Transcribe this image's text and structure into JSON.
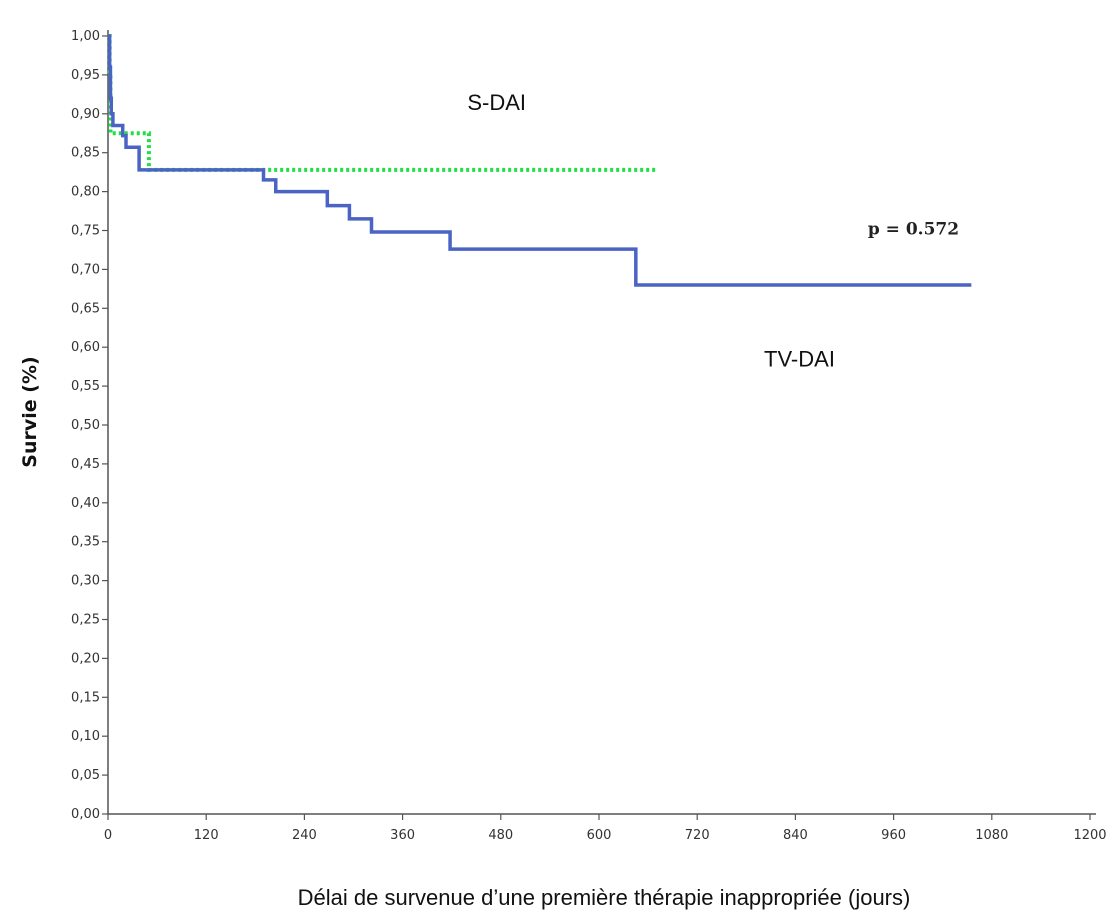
{
  "chart_data": {
    "type": "line",
    "xlabel": "Délai de survenue d’une première thérapie inappropriée (jours)",
    "ylabel": "Survie (%)",
    "xlim": [
      0,
      1200
    ],
    "ylim": [
      0,
      1.0
    ],
    "x_ticks": [
      "0",
      "120",
      "240",
      "360",
      "480",
      "600",
      "720",
      "840",
      "960",
      "1080",
      "1200"
    ],
    "y_ticks": [
      "0,00",
      "0,05",
      "0,10",
      "0,15",
      "0,20",
      "0,25",
      "0,30",
      "0,35",
      "0,40",
      "0,45",
      "0,50",
      "0,55",
      "0,60",
      "0,65",
      "0,70",
      "0,75",
      "0,80",
      "0,85",
      "0,90",
      "0,95",
      "1,00"
    ],
    "series": [
      {
        "name": "S-DAI",
        "color": "#22dd44",
        "style": "dotted",
        "points": [
          [
            0,
            1.0
          ],
          [
            2,
            0.95
          ],
          [
            3,
            0.875
          ],
          [
            50,
            0.875
          ],
          [
            50,
            0.828
          ],
          [
            670,
            0.828
          ]
        ]
      },
      {
        "name": "TV-DAI",
        "color": "#4a63c4",
        "style": "solid",
        "points": [
          [
            0,
            1.0
          ],
          [
            2,
            0.96
          ],
          [
            3,
            0.92
          ],
          [
            4,
            0.9
          ],
          [
            6,
            0.885
          ],
          [
            18,
            0.872
          ],
          [
            22,
            0.857
          ],
          [
            38,
            0.857
          ],
          [
            38,
            0.828
          ],
          [
            190,
            0.828
          ],
          [
            190,
            0.815
          ],
          [
            205,
            0.815
          ],
          [
            205,
            0.8
          ],
          [
            268,
            0.8
          ],
          [
            268,
            0.782
          ],
          [
            295,
            0.782
          ],
          [
            295,
            0.765
          ],
          [
            322,
            0.765
          ],
          [
            322,
            0.748
          ],
          [
            418,
            0.748
          ],
          [
            418,
            0.726
          ],
          [
            645,
            0.726
          ],
          [
            645,
            0.68
          ],
          [
            1055,
            0.68
          ]
        ]
      }
    ],
    "annotations": [
      {
        "text": "S-DAI",
        "x": 475,
        "y": 0.905
      },
      {
        "text": "TV-DAI",
        "x": 845,
        "y": 0.575
      },
      {
        "text": "p = 0.572",
        "x": 1040,
        "y": 0.745
      }
    ],
    "grid": false,
    "legend": "none"
  }
}
